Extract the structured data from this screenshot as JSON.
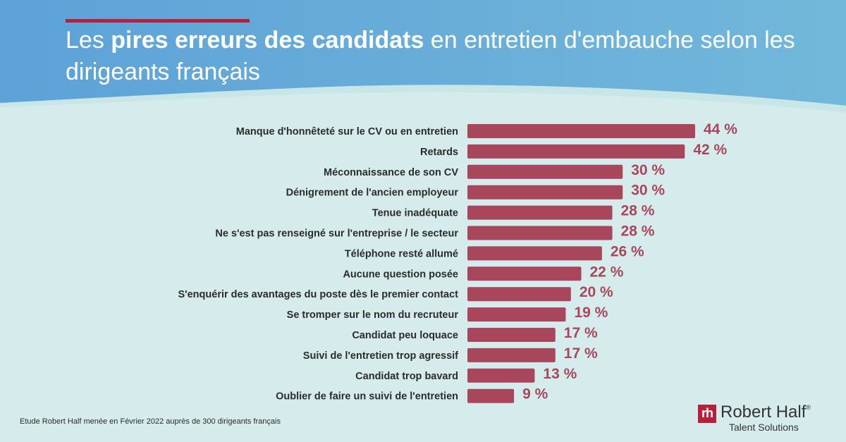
{
  "title": {
    "prefix": "Les ",
    "bold": "pires erreurs des candidats",
    "suffix": " en entretien d'embauche selon les dirigeants français"
  },
  "colors": {
    "bar": "#a8475c",
    "value_label": "#a8475c",
    "accent": "#b5213a",
    "header_blue": "#5aa6d6",
    "background": "#d6ecec"
  },
  "chart_data": {
    "type": "bar",
    "orientation": "horizontal",
    "categories": [
      "Manque d'honnêteté sur le CV  ou en entretien",
      "Retards",
      "Méconnaissance de son CV",
      "Dénigrement de l'ancien employeur",
      "Tenue inadéquate",
      "Ne s'est pas renseigné sur l'entreprise / le secteur",
      "Téléphone resté allumé",
      "Aucune question posée",
      "S'enquérir des avantages du poste dès le premier contact",
      "Se tromper sur le nom du recruteur",
      "Candidat peu loquace",
      "Suivi de l'entretien trop agressif",
      "Candidat trop bavard",
      "Oublier de faire un suivi de l'entretien"
    ],
    "values": [
      44,
      42,
      30,
      30,
      28,
      28,
      26,
      22,
      20,
      19,
      17,
      17,
      13,
      9
    ],
    "value_labels": [
      "44 %",
      "42 %",
      "30 %",
      "30 %",
      "28 %",
      "28 %",
      "26 %",
      "22 %",
      "20 %",
      "19 %",
      "17 %",
      "17 %",
      "13 %",
      "9 %"
    ],
    "unit": "%",
    "xlim": [
      0,
      44
    ],
    "grid": false,
    "legend": "none"
  },
  "footnote": "Etude Robert Half menée en Février 2022 auprès de 300 dirigeants français",
  "logo": {
    "mark": "rh",
    "name": "Robert Half",
    "registered": "®",
    "subtitle": "Talent Solutions"
  }
}
